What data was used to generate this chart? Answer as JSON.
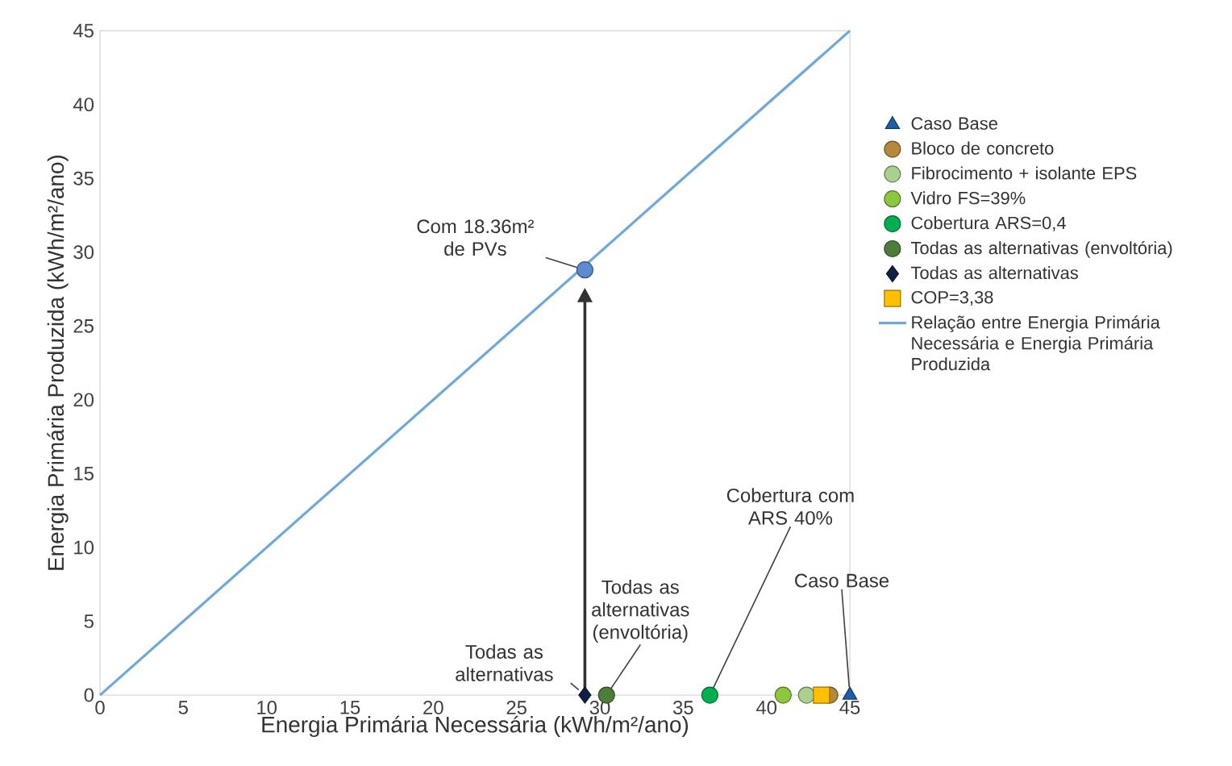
{
  "chart_data": {
    "type": "scatter",
    "xlabel": "Energia Primária Necessária (kWh/m²/ano)",
    "ylabel": "Energia Primária Produzida (kWh/m²/ano)",
    "xlim": [
      0,
      45
    ],
    "ylim": [
      0,
      45
    ],
    "xticks": [
      0,
      5,
      10,
      15,
      20,
      25,
      30,
      35,
      40,
      45
    ],
    "yticks": [
      0,
      5,
      10,
      15,
      20,
      25,
      30,
      35,
      40,
      45
    ],
    "legend": "right",
    "series": [
      {
        "name": "Caso Base",
        "color": "#1f5fa8",
        "marker": "triangle",
        "x": [
          45.0
        ],
        "values": [
          0
        ]
      },
      {
        "name": "Bloco de concreto",
        "color": "#b5883a",
        "marker": "circle",
        "x": [
          43.8
        ],
        "values": [
          0
        ]
      },
      {
        "name": "Fibrocimento + isolante EPS",
        "color": "#a9d08e",
        "marker": "circle",
        "x": [
          42.4
        ],
        "values": [
          0
        ]
      },
      {
        "name": "Vidro FS=39%",
        "color": "#8dc63f",
        "marker": "circle",
        "x": [
          41.0
        ],
        "values": [
          0
        ]
      },
      {
        "name": "Cobertura ARS=0,4",
        "color": "#00b050",
        "marker": "circle",
        "x": [
          36.6
        ],
        "values": [
          0
        ]
      },
      {
        "name": "Todas as alternativas (envoltória)",
        "color": "#4e7d3a",
        "marker": "circle",
        "x": [
          30.4
        ],
        "values": [
          0
        ]
      },
      {
        "name": "Todas as alternativas",
        "color": "#0d2145",
        "marker": "diamond",
        "x": [
          29.1
        ],
        "values": [
          0
        ]
      },
      {
        "name": "COP=3,38",
        "color": "#ffc000",
        "marker": "square",
        "x": [
          43.3
        ],
        "values": [
          0
        ]
      },
      {
        "name": "Relação entre Energia Primária Necessária e Energia Primária Produzida",
        "type": "line",
        "color": "#6fa8dc",
        "marker": "none",
        "x": [
          0,
          45
        ],
        "values": [
          0,
          45
        ]
      },
      {
        "color": "#5b8bd0",
        "marker": "circle",
        "x": [
          29.1
        ],
        "values": [
          28.8
        ]
      }
    ],
    "annotations": [
      {
        "text": "Com 18.36m² de PVs",
        "x": 29.1,
        "y": 28.8
      },
      {
        "text": "Todas as alternativas",
        "x": 29.1,
        "y": 0
      },
      {
        "text": "Todas as alternativas (envoltória)",
        "x": 30.4,
        "y": 0
      },
      {
        "text": "Cobertura com ARS 40%",
        "x": 36.6,
        "y": 0
      },
      {
        "text": "Caso Base",
        "x": 45.0,
        "y": 0
      }
    ]
  }
}
